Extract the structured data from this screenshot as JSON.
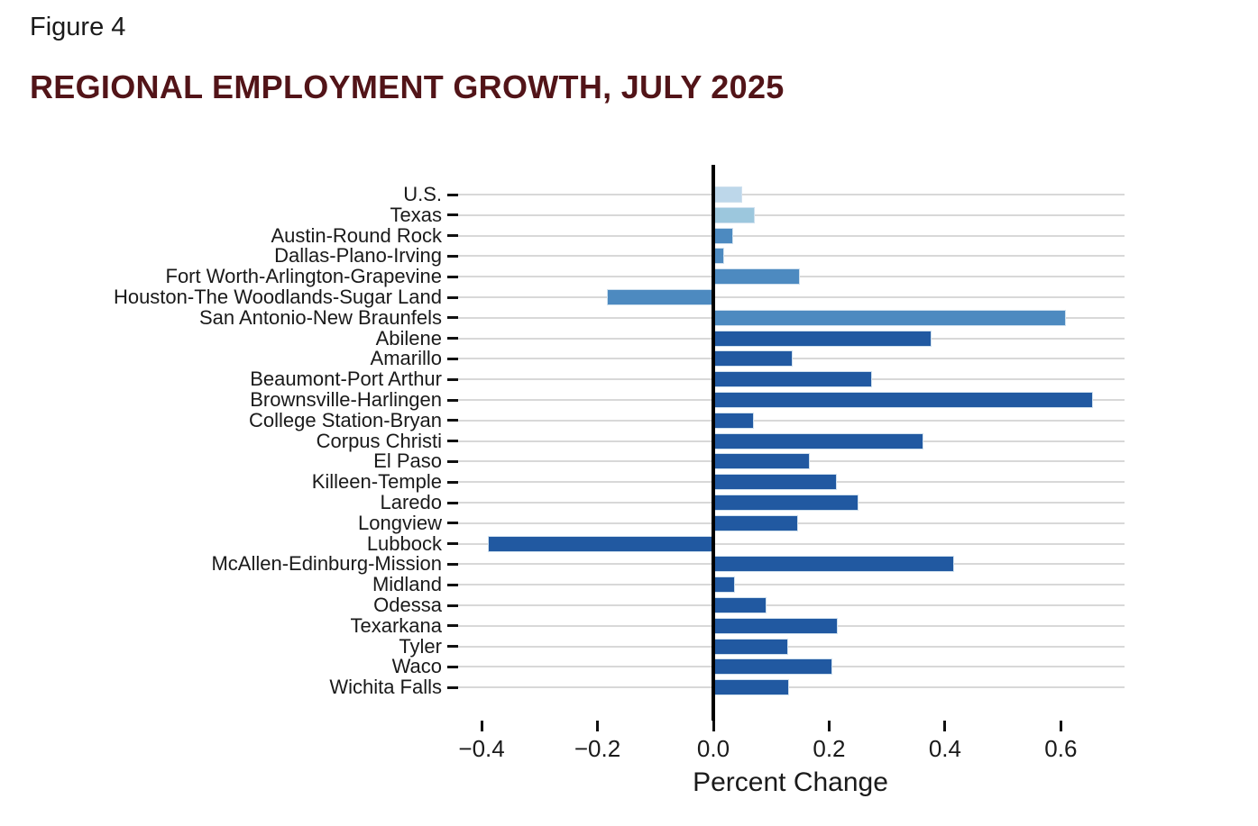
{
  "figure_label": "Figure 4",
  "title": "REGIONAL EMPLOYMENT GROWTH, JULY 2025",
  "title_color": "#521418",
  "chart_data": {
    "type": "bar",
    "orientation": "horizontal",
    "title": "REGIONAL EMPLOYMENT GROWTH, JULY 2025",
    "xlabel": "Percent Change",
    "ylabel": "",
    "xlim": [
      -0.45,
      0.71
    ],
    "grid": "per-category horizontal gridlines, no frame",
    "legend": "none",
    "x_ticks": [
      -0.4,
      -0.2,
      0,
      0.2,
      0.4,
      0.6
    ],
    "x_tick_labels": [
      "−0.4",
      "−0.2",
      "0.0",
      "0.2",
      "0.4",
      "0.6"
    ],
    "categories": [
      "U.S.",
      "Texas",
      "Austin-Round Rock",
      "Dallas-Plano-Irving",
      "Fort Worth-Arlington-Grapevine",
      "Houston-The Woodlands-Sugar Land",
      "San Antonio-New Braunfels",
      "Abilene",
      "Amarillo",
      "Beaumont-Port Arthur",
      "Brownsville-Harlingen",
      "College Station-Bryan",
      "Corpus Christi",
      "El Paso",
      "Killeen-Temple",
      "Laredo",
      "Longview",
      "Lubbock",
      "McAllen-Edinburg-Mission",
      "Midland",
      "Odessa",
      "Texarkana",
      "Tyler",
      "Waco",
      "Wichita Falls"
    ],
    "values": [
      0.05,
      0.072,
      0.034,
      0.018,
      0.15,
      -0.184,
      0.608,
      0.377,
      0.137,
      0.274,
      0.655,
      0.07,
      0.362,
      0.167,
      0.213,
      0.25,
      0.147,
      -0.389,
      0.415,
      0.037,
      0.092,
      0.215,
      0.13,
      0.205,
      0.131
    ],
    "groups": [
      "us",
      "texas",
      "major_metro",
      "major_metro",
      "major_metro",
      "major_metro",
      "major_metro",
      "metro",
      "metro",
      "metro",
      "metro",
      "metro",
      "metro",
      "metro",
      "metro",
      "metro",
      "metro",
      "metro",
      "metro",
      "metro",
      "metro",
      "metro",
      "metro",
      "metro",
      "metro"
    ],
    "colors": {
      "us": "#bdd7ea",
      "texas": "#9cc7dd",
      "major_metro": "#4d8ac0",
      "metro": "#2159a1"
    },
    "gridline_color": "#d8d8d8",
    "axis_color": "#111111"
  }
}
